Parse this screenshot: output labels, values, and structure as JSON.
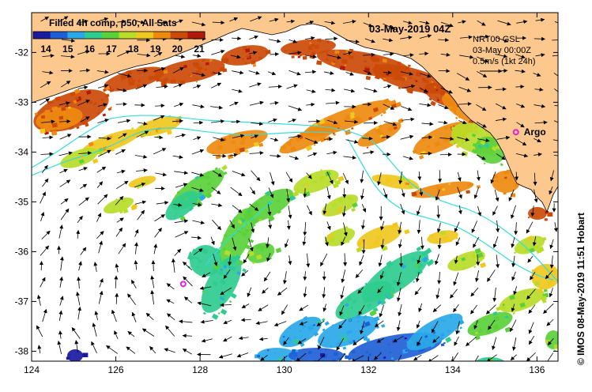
{
  "title": "03-May-2019 04Z",
  "legend": {
    "title": "Filled 4h comp, p50, All Sats",
    "ticks": [
      "14",
      "15",
      "16",
      "17",
      "18",
      "19",
      "20",
      "21"
    ],
    "colors": [
      "#1a1a9e",
      "#1f5fd6",
      "#2aa8e8",
      "#2fcc90",
      "#5ad03a",
      "#b8dc28",
      "#f0c820",
      "#ee8a10",
      "#cc4a08",
      "#b01a0a"
    ]
  },
  "info": {
    "line1": "NRT00 GSL",
    "line2": "03-May 00:00Z",
    "line3": "0.5m/s (1kt 24h)"
  },
  "place": {
    "label": "Argo",
    "lon": 135.5,
    "lat": -33.6
  },
  "float_marker": {
    "lon": 127.6,
    "lat": -36.65
  },
  "axes": {
    "x_ticks": [
      "124",
      "126",
      "128",
      "130",
      "132",
      "134",
      "136"
    ],
    "x_values": [
      124,
      126,
      128,
      130,
      132,
      134,
      136
    ],
    "y_ticks": [
      "-32",
      "-33",
      "-34",
      "-35",
      "-36",
      "-37",
      "-38"
    ],
    "y_values": [
      -32,
      -33,
      -34,
      -35,
      -36,
      -37,
      -38
    ],
    "lon_range": [
      124,
      136.5
    ],
    "lat_range": [
      -38.2,
      -31.2
    ]
  },
  "credit": "© IMOS 08-May-2019 11:51 Hobart",
  "colors": {
    "land": "#fcc88e",
    "ocean": "#ffffff",
    "track": "#33dddd",
    "marker": "#e020d8",
    "arrow": "#000000"
  }
}
